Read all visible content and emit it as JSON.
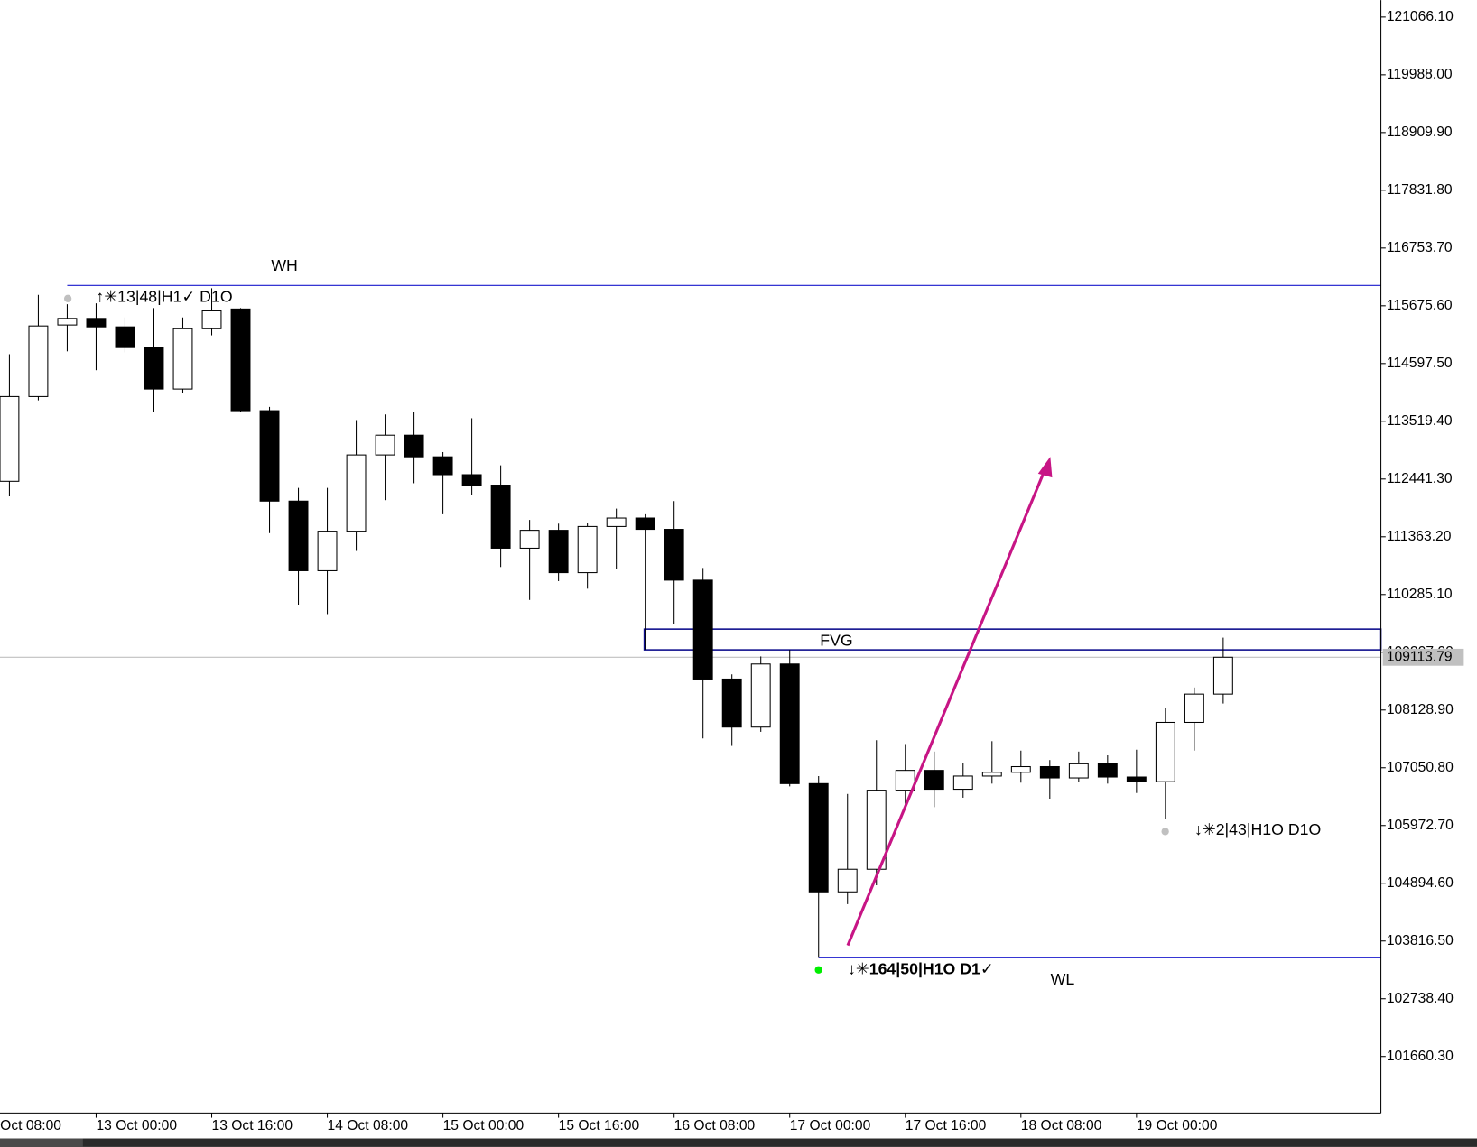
{
  "chart_data": {
    "type": "candlestick",
    "xticks": [
      {
        "value": -1,
        "label": "12 Oct 08:00"
      },
      {
        "value": 3,
        "label": "13 Oct 00:00"
      },
      {
        "value": 7,
        "label": "13 Oct 16:00"
      },
      {
        "value": 11,
        "label": "14 Oct 08:00"
      },
      {
        "value": 15,
        "label": "15 Oct 00:00"
      },
      {
        "value": 19,
        "label": "15 Oct 16:00"
      },
      {
        "value": 23,
        "label": "16 Oct 08:00"
      },
      {
        "value": 27,
        "label": "17 Oct 00:00"
      },
      {
        "value": 31,
        "label": "17 Oct 16:00"
      },
      {
        "value": 35,
        "label": "18 Oct 08:00"
      },
      {
        "value": 39,
        "label": "19 Oct 00:00"
      }
    ],
    "open": [
      112399,
      113981,
      115317,
      115440,
      115282,
      114895,
      114121,
      115247,
      115616,
      113717,
      112029,
      110729,
      111467,
      112891,
      113260,
      112856,
      112522,
      112328,
      111150,
      111484,
      110693,
      111555,
      111713,
      111502,
      110553,
      108707,
      107810,
      108988,
      106755,
      104734,
      105156,
      106632,
      107002,
      106650,
      106896,
      106966,
      107072,
      106861,
      107125,
      106878,
      106791,
      107898,
      108426
    ],
    "high": [
      114772,
      115879,
      115704,
      115721,
      115458,
      115633,
      115458,
      116003,
      115633,
      113787,
      112276,
      112276,
      113541,
      113647,
      113700,
      112944,
      113576,
      112697,
      111678,
      111608,
      111625,
      111889,
      111783,
      112029,
      110781,
      108795,
      109129,
      109252,
      106896,
      106562,
      107564,
      107494,
      107353,
      107142,
      107547,
      107371,
      107195,
      107353,
      107283,
      107388,
      108162,
      108549,
      109480
    ],
    "low": [
      112117,
      113910,
      114825,
      114473,
      114807,
      113700,
      114051,
      115124,
      113700,
      111432,
      110096,
      109920,
      111098,
      112047,
      112363,
      111783,
      112135,
      110799,
      110184,
      110535,
      110394,
      110764,
      109252,
      109726,
      107599,
      107459,
      107722,
      106703,
      103503,
      104505,
      104857,
      106263,
      106316,
      106492,
      106755,
      106773,
      106474,
      106791,
      106755,
      106580,
      106087,
      107371,
      108250
    ],
    "close": [
      113981,
      115299,
      115440,
      115282,
      114895,
      114121,
      115247,
      115581,
      113717,
      112029,
      110729,
      111467,
      112891,
      113260,
      112856,
      112522,
      112328,
      111150,
      111484,
      110693,
      111555,
      111713,
      111502,
      110553,
      108707,
      107810,
      108988,
      106755,
      104734,
      105156,
      106632,
      107002,
      106650,
      106896,
      106966,
      107072,
      106861,
      107125,
      106878,
      106791,
      107898,
      108426,
      109113.79
    ],
    "up_color": "#ffffff",
    "down_color": "#000000",
    "ylim": [
      100605.3,
      121382.5
    ],
    "yticks": [
      {
        "value": 121066.1,
        "label": "121066.10"
      },
      {
        "value": 119988,
        "label": "119988.00"
      },
      {
        "value": 118909.9,
        "label": "118909.90"
      },
      {
        "value": 117831.8,
        "label": "117831.80"
      },
      {
        "value": 116753.7,
        "label": "116753.70"
      },
      {
        "value": 115675.6,
        "label": "115675.60"
      },
      {
        "value": 114597.5,
        "label": "114597.50"
      },
      {
        "value": 113519.4,
        "label": "113519.40"
      },
      {
        "value": 112441.3,
        "label": "112441.30"
      },
      {
        "value": 111363.2,
        "label": "111363.20"
      },
      {
        "value": 110285.1,
        "label": "110285.10"
      },
      {
        "value": 109207,
        "label": "109207.00"
      },
      {
        "value": 108128.9,
        "label": "108128.90"
      },
      {
        "value": 107050.8,
        "label": "107050.80"
      },
      {
        "value": 105972.7,
        "label": "105972.70"
      },
      {
        "value": 104894.6,
        "label": "104894.60"
      },
      {
        "value": 103816.5,
        "label": "103816.50"
      },
      {
        "value": 102738.4,
        "label": "102738.40"
      },
      {
        "value": 101660.3,
        "label": "101660.30"
      }
    ],
    "current_price": 109113.79,
    "levels": [
      {
        "name": "WH",
        "value": 116055,
        "color": "#1a1acd"
      },
      {
        "name": "WL",
        "value": 103503,
        "color": "#1a1acd"
      }
    ],
    "zone": {
      "name": "FVG",
      "range": [
        109252,
        109639
      ],
      "color": "#0c0c8c"
    },
    "label_color": "#ff00ff",
    "annotations": [
      {
        "text": "↑✳13|48|H1✓ D1O",
        "color": "#c0c0c0"
      },
      {
        "text": "↓✳164|50|H1O D1✓",
        "color": "#00ee00"
      },
      {
        "text": "↓✳2|43|H1O D1O",
        "color": "#c0c0c0"
      }
    ]
  }
}
